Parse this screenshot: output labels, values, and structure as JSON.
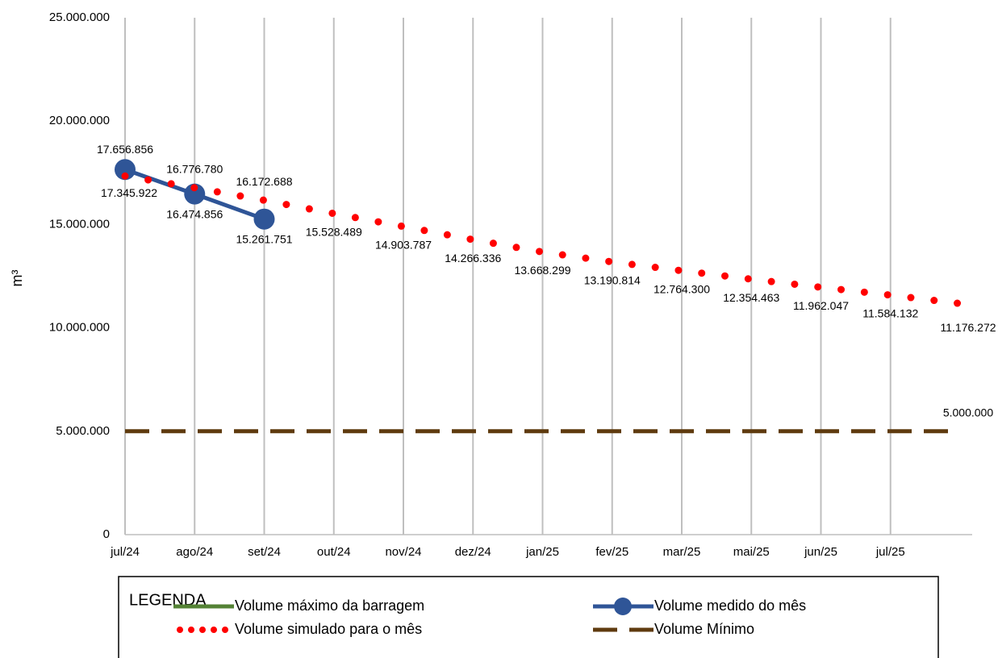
{
  "chart_data": {
    "type": "line",
    "y_label": "m³",
    "categories": [
      "jul/24",
      "ago/24",
      "set/24",
      "out/24",
      "nov/24",
      "dez/24",
      "jan/25",
      "fev/25",
      "mar/25",
      "mai/25",
      "jun/25",
      "jul/25",
      null
    ],
    "ylim": [
      0,
      25000000
    ],
    "yticks": [
      0,
      {
        "value": 5000000,
        "label": "5.000.000"
      },
      {
        "value": 10000000,
        "label": "10.000.000"
      },
      {
        "value": 15000000,
        "label": "15.000.000"
      },
      {
        "value": 20000000,
        "label": "20.000.000"
      },
      {
        "value": 25000000,
        "label": "25.000.000"
      }
    ],
    "grid": true,
    "legend_title": "LEGENDA",
    "series": [
      {
        "name": "Volume máximo da barragem",
        "color": "#548235",
        "style": "solid",
        "values": [
          null,
          null,
          null,
          null,
          null,
          null,
          null,
          null,
          null,
          null,
          null,
          null,
          null
        ]
      },
      {
        "name": "Volume medido do mês",
        "color": "#2f5597",
        "style": "marker",
        "values": [
          17656856,
          16474856,
          15261751,
          null,
          null,
          null,
          null,
          null,
          null,
          null,
          null,
          null,
          null
        ],
        "value_labels": [
          "17.656.856",
          "16.474.856",
          "15.261.751",
          null,
          null,
          null,
          null,
          null,
          null,
          null,
          null,
          null,
          null
        ]
      },
      {
        "name": "Volume simulado para o mês",
        "color": "#ff0000",
        "style": "dotted",
        "values": [
          17345922,
          16776780,
          16172688,
          15528489,
          14903787,
          14266336,
          13668299,
          13190814,
          12764300,
          12354463,
          11962047,
          11584132,
          11176272
        ],
        "value_labels": [
          "17.345.922",
          "16.776.780",
          "16.172.688",
          "15.528.489",
          "14.903.787",
          "14.266.336",
          "13.668.299",
          "13.190.814",
          "12.764.300",
          "12.354.463",
          "11.962.047",
          "11.584.132",
          "11.176.272"
        ]
      },
      {
        "name": "Volume Mínimo",
        "color": "#5f3b0f",
        "style": "dashed",
        "values": [
          5000000,
          5000000,
          5000000,
          5000000,
          5000000,
          5000000,
          5000000,
          5000000,
          5000000,
          5000000,
          5000000,
          5000000,
          5000000
        ],
        "value_labels": [
          null,
          null,
          null,
          null,
          null,
          null,
          null,
          null,
          null,
          null,
          null,
          null,
          "5.000.000"
        ]
      }
    ]
  }
}
